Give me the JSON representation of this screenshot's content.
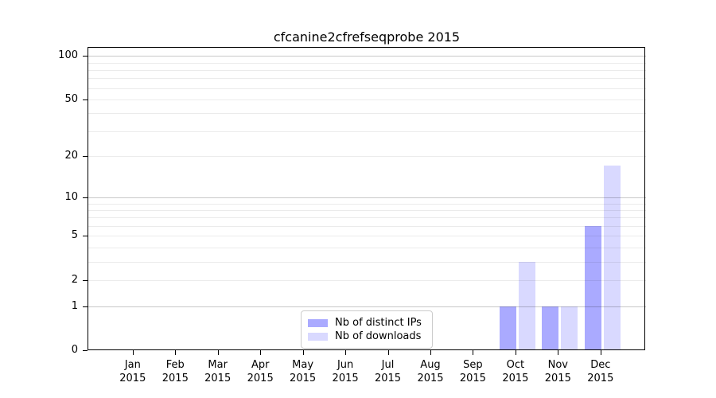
{
  "chart_data": {
    "type": "bar",
    "title": "cfcanine2cfrefseqprobe 2015",
    "categories": [
      "Jan",
      "Feb",
      "Mar",
      "Apr",
      "May",
      "Jun",
      "Jul",
      "Aug",
      "Sep",
      "Oct",
      "Nov",
      "Dec"
    ],
    "year": "2015",
    "series": [
      {
        "name": "Nb of distinct IPs",
        "color": "#aaaaff",
        "values": [
          0,
          0,
          0,
          0,
          0,
          0,
          0,
          0,
          0,
          1,
          1,
          6
        ]
      },
      {
        "name": "Nb of downloads",
        "color": "#d9d9ff",
        "values": [
          0,
          0,
          0,
          0,
          0,
          0,
          0,
          0,
          0,
          3,
          1,
          17
        ]
      }
    ],
    "y_axis": {
      "scale": "log1p",
      "ticks": [
        0,
        1,
        2,
        5,
        10,
        20,
        50,
        100
      ],
      "major_gridlines": [
        1,
        10,
        100
      ],
      "minor_gridlines": [
        2,
        3,
        4,
        5,
        6,
        7,
        8,
        9,
        20,
        30,
        40,
        50,
        60,
        70,
        80,
        90
      ],
      "ylim": [
        0,
        113
      ]
    },
    "grid": true,
    "legend_position": "lower-center",
    "colors": {
      "major_grid": "#c8c8c8",
      "minor_grid": "#ebebeb",
      "spine": "#000000"
    }
  }
}
